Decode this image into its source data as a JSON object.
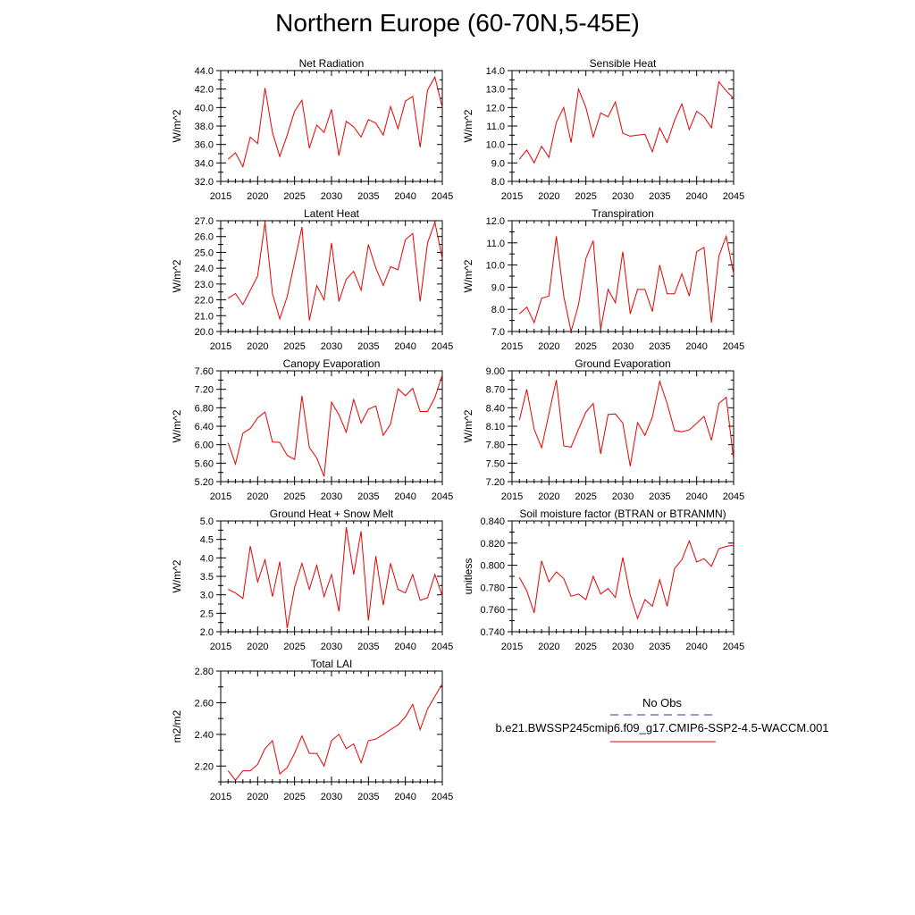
{
  "title": "Northern Europe (60-70N,5-45E)",
  "legend": {
    "entries": [
      {
        "label": "No Obs",
        "color": "#3333aa",
        "dash": "dashed"
      },
      {
        "label": "b.e21.BWSSP245cmip6.f09_g17.CMIP6-SSP2-4.5-WACCM.001",
        "color": "#e60000",
        "dash": "solid"
      }
    ]
  },
  "chart_data": [
    {
      "type": "line",
      "title": "Net Radiation",
      "ylabel": "W/m^2",
      "xlim": [
        2015,
        2045
      ],
      "ylim": [
        32.0,
        44.0
      ],
      "xticks": [
        2015,
        2020,
        2025,
        2030,
        2035,
        2040,
        2045
      ],
      "yticks": [
        "32.0",
        "34.0",
        "36.0",
        "38.0",
        "40.0",
        "42.0",
        "44.0"
      ],
      "x": [
        2016,
        2017,
        2018,
        2019,
        2020,
        2021,
        2022,
        2023,
        2024,
        2025,
        2026,
        2027,
        2028,
        2029,
        2030,
        2031,
        2032,
        2033,
        2034,
        2035,
        2036,
        2037,
        2038,
        2039,
        2040,
        2041,
        2042,
        2043,
        2044,
        2045
      ],
      "series": [
        {
          "values": [
            34.4,
            35.1,
            33.6,
            36.8,
            36.1,
            42.1,
            37.3,
            34.7,
            37.0,
            39.6,
            40.8,
            35.6,
            38.1,
            37.3,
            39.8,
            34.8,
            38.5,
            37.9,
            36.8,
            38.7,
            38.3,
            37.0,
            40.1,
            37.7,
            40.7,
            41.2,
            35.7,
            41.9,
            43.3,
            40.0
          ]
        }
      ]
    },
    {
      "type": "line",
      "title": "Sensible Heat",
      "ylabel": "W/m^2",
      "xlim": [
        2015,
        2045
      ],
      "ylim": [
        8.0,
        14.0
      ],
      "xticks": [
        2015,
        2020,
        2025,
        2030,
        2035,
        2040,
        2045
      ],
      "yticks": [
        "8.0",
        "9.0",
        "10.0",
        "11.0",
        "12.0",
        "13.0",
        "14.0"
      ],
      "x": [
        2016,
        2017,
        2018,
        2019,
        2020,
        2021,
        2022,
        2023,
        2024,
        2025,
        2026,
        2027,
        2028,
        2029,
        2030,
        2031,
        2032,
        2033,
        2034,
        2035,
        2036,
        2037,
        2038,
        2039,
        2040,
        2041,
        2042,
        2043,
        2044,
        2045
      ],
      "series": [
        {
          "values": [
            9.2,
            9.7,
            9.0,
            9.9,
            9.3,
            11.2,
            12.0,
            10.1,
            13.0,
            12.0,
            10.4,
            11.7,
            11.5,
            12.3,
            10.6,
            10.45,
            10.5,
            10.55,
            9.6,
            10.9,
            10.1,
            11.3,
            12.2,
            10.8,
            11.8,
            11.5,
            10.9,
            13.4,
            12.9,
            12.5
          ]
        }
      ]
    },
    {
      "type": "line",
      "title": "Latent Heat",
      "ylabel": "W/m^2",
      "xlim": [
        2015,
        2045
      ],
      "ylim": [
        20.0,
        27.0
      ],
      "xticks": [
        2015,
        2020,
        2025,
        2030,
        2035,
        2040,
        2045
      ],
      "yticks": [
        "20.0",
        "21.0",
        "22.0",
        "23.0",
        "24.0",
        "25.0",
        "26.0",
        "27.0"
      ],
      "x": [
        2016,
        2017,
        2018,
        2019,
        2020,
        2021,
        2022,
        2023,
        2024,
        2025,
        2026,
        2027,
        2028,
        2029,
        2030,
        2031,
        2032,
        2033,
        2034,
        2035,
        2036,
        2037,
        2038,
        2039,
        2040,
        2041,
        2042,
        2043,
        2044,
        2045
      ],
      "series": [
        {
          "values": [
            22.1,
            22.4,
            21.7,
            22.6,
            23.5,
            26.9,
            22.4,
            20.8,
            22.2,
            24.4,
            26.6,
            20.7,
            22.9,
            22.0,
            25.6,
            21.9,
            23.3,
            23.8,
            22.6,
            25.5,
            24.0,
            22.9,
            24.1,
            23.9,
            25.8,
            26.2,
            21.9,
            25.6,
            26.9,
            24.6
          ]
        }
      ]
    },
    {
      "type": "line",
      "title": "Transpiration",
      "ylabel": "W/m^2",
      "xlim": [
        2015,
        2045
      ],
      "ylim": [
        7.0,
        12.0
      ],
      "xticks": [
        2015,
        2020,
        2025,
        2030,
        2035,
        2040,
        2045
      ],
      "yticks": [
        "7.0",
        "8.0",
        "9.0",
        "10.0",
        "11.0",
        "12.0"
      ],
      "x": [
        2016,
        2017,
        2018,
        2019,
        2020,
        2021,
        2022,
        2023,
        2024,
        2025,
        2026,
        2027,
        2028,
        2029,
        2030,
        2031,
        2032,
        2033,
        2034,
        2035,
        2036,
        2037,
        2038,
        2039,
        2040,
        2041,
        2042,
        2043,
        2044,
        2045
      ],
      "series": [
        {
          "values": [
            7.8,
            8.1,
            7.4,
            8.5,
            8.6,
            11.3,
            8.6,
            7.0,
            8.2,
            10.3,
            11.1,
            7.1,
            8.9,
            8.3,
            10.6,
            7.8,
            8.9,
            8.9,
            7.9,
            10.0,
            8.7,
            8.7,
            9.6,
            8.6,
            10.6,
            10.8,
            7.4,
            10.4,
            11.3,
            9.6
          ]
        }
      ]
    },
    {
      "type": "line",
      "title": "Canopy Evaporation",
      "ylabel": "W/m^2",
      "xlim": [
        2015,
        2045
      ],
      "ylim": [
        5.2,
        7.6
      ],
      "xticks": [
        2015,
        2020,
        2025,
        2030,
        2035,
        2040,
        2045
      ],
      "yticks": [
        "5.20",
        "5.60",
        "6.00",
        "6.40",
        "6.80",
        "7.20",
        "7.60"
      ],
      "x": [
        2016,
        2017,
        2018,
        2019,
        2020,
        2021,
        2022,
        2023,
        2024,
        2025,
        2026,
        2027,
        2028,
        2029,
        2030,
        2031,
        2032,
        2033,
        2034,
        2035,
        2036,
        2037,
        2038,
        2039,
        2040,
        2041,
        2042,
        2043,
        2044,
        2045
      ],
      "series": [
        {
          "values": [
            6.04,
            5.58,
            6.25,
            6.35,
            6.58,
            6.71,
            6.06,
            6.05,
            5.77,
            5.68,
            7.06,
            5.94,
            5.71,
            5.31,
            6.92,
            6.65,
            6.27,
            6.98,
            6.47,
            6.77,
            6.84,
            6.2,
            6.45,
            7.21,
            7.06,
            7.22,
            6.72,
            6.72,
            7.02,
            7.51
          ]
        }
      ]
    },
    {
      "type": "line",
      "title": "Ground Evaporation",
      "ylabel": "W/m^2",
      "xlim": [
        2015,
        2045
      ],
      "ylim": [
        7.2,
        9.0
      ],
      "xticks": [
        2015,
        2020,
        2025,
        2030,
        2035,
        2040,
        2045
      ],
      "yticks": [
        "7.20",
        "7.50",
        "7.80",
        "8.10",
        "8.40",
        "8.70",
        "9.00"
      ],
      "x": [
        2016,
        2017,
        2018,
        2019,
        2020,
        2021,
        2022,
        2023,
        2024,
        2025,
        2026,
        2027,
        2028,
        2029,
        2030,
        2031,
        2032,
        2033,
        2034,
        2035,
        2036,
        2037,
        2038,
        2039,
        2040,
        2041,
        2042,
        2043,
        2044,
        2045
      ],
      "series": [
        {
          "values": [
            8.2,
            8.7,
            8.05,
            7.75,
            8.3,
            8.85,
            7.78,
            7.76,
            8.05,
            8.33,
            8.47,
            7.65,
            8.29,
            8.3,
            8.15,
            7.45,
            8.16,
            7.95,
            8.25,
            8.83,
            8.47,
            8.03,
            8.01,
            8.04,
            8.15,
            8.26,
            7.87,
            8.47,
            8.57,
            7.56
          ]
        }
      ]
    },
    {
      "type": "line",
      "title": "Ground Heat + Snow Melt",
      "ylabel": "W/m^2",
      "xlim": [
        2015,
        2045
      ],
      "ylim": [
        2.0,
        5.0
      ],
      "xticks": [
        2015,
        2020,
        2025,
        2030,
        2035,
        2040,
        2045
      ],
      "yticks": [
        "2.0",
        "2.5",
        "3.0",
        "3.5",
        "4.0",
        "4.5",
        "5.0"
      ],
      "x": [
        2016,
        2017,
        2018,
        2019,
        2020,
        2021,
        2022,
        2023,
        2024,
        2025,
        2026,
        2027,
        2028,
        2029,
        2030,
        2031,
        2032,
        2033,
        2034,
        2035,
        2036,
        2037,
        2038,
        2039,
        2040,
        2041,
        2042,
        2043,
        2044,
        2045
      ],
      "series": [
        {
          "values": [
            3.15,
            3.05,
            2.9,
            4.32,
            3.35,
            3.95,
            2.95,
            3.9,
            2.1,
            3.2,
            3.85,
            3.15,
            3.8,
            2.95,
            3.55,
            2.55,
            4.83,
            3.55,
            4.72,
            2.3,
            4.05,
            2.72,
            3.85,
            3.15,
            3.05,
            3.55,
            2.85,
            2.92,
            3.55,
            2.97
          ]
        }
      ]
    },
    {
      "type": "line",
      "title": "Soil moisture factor (BTRAN or BTRANMN)",
      "ylabel": "unitless",
      "xlim": [
        2015,
        2045
      ],
      "ylim": [
        0.74,
        0.84
      ],
      "xticks": [
        2015,
        2020,
        2025,
        2030,
        2035,
        2040,
        2045
      ],
      "yticks": [
        "0.740",
        "0.760",
        "0.780",
        "0.800",
        "0.820",
        "0.840"
      ],
      "x": [
        2016,
        2017,
        2018,
        2019,
        2020,
        2021,
        2022,
        2023,
        2024,
        2025,
        2026,
        2027,
        2028,
        2029,
        2030,
        2031,
        2032,
        2033,
        2034,
        2035,
        2036,
        2037,
        2038,
        2039,
        2040,
        2041,
        2042,
        2043,
        2044,
        2045
      ],
      "series": [
        {
          "values": [
            0.789,
            0.777,
            0.757,
            0.804,
            0.785,
            0.794,
            0.788,
            0.772,
            0.774,
            0.769,
            0.79,
            0.774,
            0.779,
            0.771,
            0.807,
            0.773,
            0.752,
            0.769,
            0.763,
            0.787,
            0.763,
            0.797,
            0.805,
            0.822,
            0.803,
            0.806,
            0.799,
            0.815,
            0.817,
            0.818
          ]
        }
      ]
    },
    {
      "type": "line",
      "title": "Total LAI",
      "ylabel": "m2/m2",
      "xlim": [
        2015,
        2045
      ],
      "ylim": [
        2.1,
        2.8
      ],
      "xticks": [
        2015,
        2020,
        2025,
        2030,
        2035,
        2040,
        2045
      ],
      "yticks": [
        "2.20",
        "2.40",
        "2.60",
        "2.80"
      ],
      "x": [
        2016,
        2017,
        2018,
        2019,
        2020,
        2021,
        2022,
        2023,
        2024,
        2025,
        2026,
        2027,
        2028,
        2029,
        2030,
        2031,
        2032,
        2033,
        2034,
        2035,
        2036,
        2037,
        2038,
        2039,
        2040,
        2041,
        2042,
        2043,
        2044,
        2045
      ],
      "series": [
        {
          "values": [
            2.17,
            2.11,
            2.17,
            2.17,
            2.21,
            2.31,
            2.36,
            2.15,
            2.19,
            2.28,
            2.39,
            2.28,
            2.28,
            2.2,
            2.36,
            2.4,
            2.31,
            2.34,
            2.22,
            2.36,
            2.37,
            2.4,
            2.43,
            2.46,
            2.51,
            2.59,
            2.43,
            2.56,
            2.64,
            2.72
          ]
        }
      ]
    }
  ]
}
